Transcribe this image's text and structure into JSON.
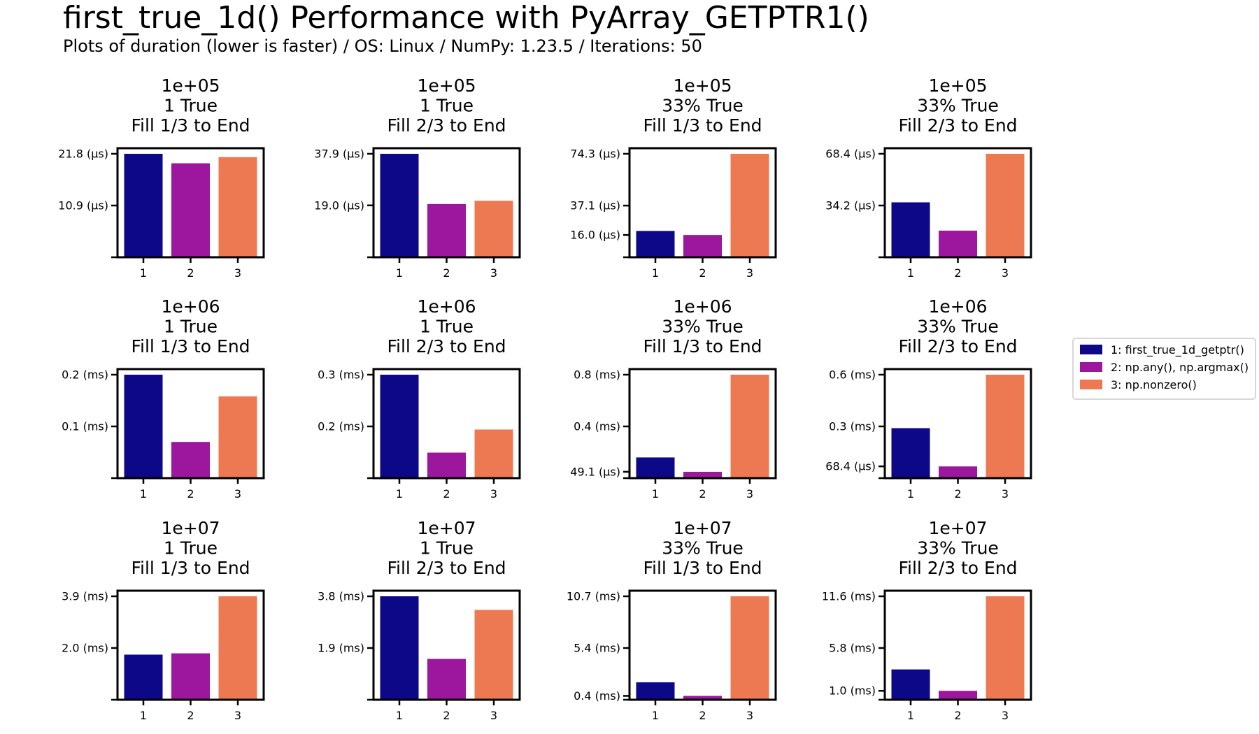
{
  "title": "first_true_1d() Performance with PyArray_GETPTR1()",
  "subtitle": "Plots of duration (lower is faster) / OS: Linux / NumPy: 1.23.5 / Iterations: 50",
  "colors": {
    "1": "#0d0887",
    "2": "#9c179e",
    "3": "#ed7953"
  },
  "legend": [
    {
      "key": "1",
      "label": "1: first_true_1d_getptr()"
    },
    {
      "key": "2",
      "label": "2: np.any(), np.argmax()"
    },
    {
      "key": "3",
      "label": "3: np.nonzero()"
    }
  ],
  "chart_data": [
    {
      "type": "bar",
      "title": [
        "1e+05",
        "1 True",
        "Fill 1/3 to End"
      ],
      "categories": [
        "1",
        "2",
        "3"
      ],
      "values": [
        21.8,
        19.8,
        21.1
      ],
      "unit": "µs",
      "ylim": [
        0,
        21.8
      ],
      "yticks": [
        {
          "value": 0,
          "label": ""
        },
        {
          "value": 10.9,
          "label": "10.9 (µs)"
        },
        {
          "value": 21.8,
          "label": "21.8 (µs)"
        }
      ]
    },
    {
      "type": "bar",
      "title": [
        "1e+05",
        "1 True",
        "Fill 2/3 to End"
      ],
      "categories": [
        "1",
        "2",
        "3"
      ],
      "values": [
        37.9,
        19.5,
        20.7
      ],
      "unit": "µs",
      "ylim": [
        0,
        37.9
      ],
      "yticks": [
        {
          "value": 0,
          "label": ""
        },
        {
          "value": 19.0,
          "label": "19.0 (µs)"
        },
        {
          "value": 37.9,
          "label": "37.9 (µs)"
        }
      ]
    },
    {
      "type": "bar",
      "title": [
        "1e+05",
        "33% True",
        "Fill 1/3 to End"
      ],
      "categories": [
        "1",
        "2",
        "3"
      ],
      "values": [
        18.9,
        16.0,
        74.3
      ],
      "unit": "µs",
      "ylim": [
        0,
        74.3
      ],
      "yticks": [
        {
          "value": 0,
          "label": ""
        },
        {
          "value": 16.0,
          "label": "16.0 (µs)"
        },
        {
          "value": 37.1,
          "label": "37.1 (µs)"
        },
        {
          "value": 74.3,
          "label": "74.3 (µs)"
        }
      ]
    },
    {
      "type": "bar",
      "title": [
        "1e+05",
        "33% True",
        "Fill 2/3 to End"
      ],
      "categories": [
        "1",
        "2",
        "3"
      ],
      "values": [
        36.3,
        17.6,
        68.4
      ],
      "unit": "µs",
      "ylim": [
        0,
        68.4
      ],
      "yticks": [
        {
          "value": 0,
          "label": ""
        },
        {
          "value": 34.2,
          "label": "34.2 (µs)"
        },
        {
          "value": 68.4,
          "label": "68.4 (µs)"
        }
      ]
    },
    {
      "type": "bar",
      "title": [
        "1e+06",
        "1 True",
        "Fill 1/3 to End"
      ],
      "categories": [
        "1",
        "2",
        "3"
      ],
      "values": [
        0.2,
        0.07,
        0.158
      ],
      "unit": "ms",
      "ylim": [
        0,
        0.2
      ],
      "yticks": [
        {
          "value": 0,
          "label": ""
        },
        {
          "value": 0.1,
          "label": "0.1 (ms)"
        },
        {
          "value": 0.2,
          "label": "0.2 (ms)"
        }
      ]
    },
    {
      "type": "bar",
      "title": [
        "1e+06",
        "1 True",
        "Fill 2/3 to End"
      ],
      "categories": [
        "1",
        "2",
        "3"
      ],
      "values": [
        0.3,
        0.074,
        0.141
      ],
      "unit": "ms",
      "ylim": [
        0,
        0.3
      ],
      "yticks": [
        {
          "value": 0,
          "label": ""
        },
        {
          "value": 0.15,
          "label": "0.2 (ms)"
        },
        {
          "value": 0.3,
          "label": "0.3 (ms)"
        }
      ]
    },
    {
      "type": "bar",
      "title": [
        "1e+06",
        "33% True",
        "Fill 1/3 to End"
      ],
      "categories": [
        "1",
        "2",
        "3"
      ],
      "values": [
        0.16,
        0.049,
        0.8
      ],
      "unit": "ms",
      "ylim": [
        0,
        0.8
      ],
      "yticks": [
        {
          "value": 0,
          "label": ""
        },
        {
          "value": 0.0491,
          "label": "49.1 (µs)"
        },
        {
          "value": 0.4,
          "label": "0.4 (ms)"
        },
        {
          "value": 0.8,
          "label": "0.8 (ms)"
        }
      ]
    },
    {
      "type": "bar",
      "title": [
        "1e+06",
        "33% True",
        "Fill 2/3 to End"
      ],
      "categories": [
        "1",
        "2",
        "3"
      ],
      "values": [
        0.29,
        0.068,
        0.6
      ],
      "unit": "ms",
      "ylim": [
        0,
        0.6
      ],
      "yticks": [
        {
          "value": 0,
          "label": ""
        },
        {
          "value": 0.0684,
          "label": "68.4 (µs)"
        },
        {
          "value": 0.3,
          "label": "0.3 (ms)"
        },
        {
          "value": 0.6,
          "label": "0.6 (ms)"
        }
      ]
    },
    {
      "type": "bar",
      "title": [
        "1e+07",
        "1 True",
        "Fill 1/3 to End"
      ],
      "categories": [
        "1",
        "2",
        "3"
      ],
      "values": [
        1.7,
        1.75,
        3.9
      ],
      "unit": "ms",
      "ylim": [
        0,
        3.9
      ],
      "yticks": [
        {
          "value": 0,
          "label": ""
        },
        {
          "value": 1.95,
          "label": "2.0 (ms)"
        },
        {
          "value": 3.9,
          "label": "3.9 (ms)"
        }
      ]
    },
    {
      "type": "bar",
      "title": [
        "1e+07",
        "1 True",
        "Fill 2/3 to End"
      ],
      "categories": [
        "1",
        "2",
        "3"
      ],
      "values": [
        3.8,
        1.5,
        3.3
      ],
      "unit": "ms",
      "ylim": [
        0,
        3.8
      ],
      "yticks": [
        {
          "value": 0,
          "label": ""
        },
        {
          "value": 1.9,
          "label": "1.9 (ms)"
        },
        {
          "value": 3.8,
          "label": "3.8 (ms)"
        }
      ]
    },
    {
      "type": "bar",
      "title": [
        "1e+07",
        "33% True",
        "Fill 1/3 to End"
      ],
      "categories": [
        "1",
        "2",
        "3"
      ],
      "values": [
        1.8,
        0.4,
        10.7
      ],
      "unit": "ms",
      "ylim": [
        0,
        10.7
      ],
      "yticks": [
        {
          "value": 0,
          "label": ""
        },
        {
          "value": 0.4,
          "label": "0.4 (ms)"
        },
        {
          "value": 5.35,
          "label": "5.4 (ms)"
        },
        {
          "value": 10.7,
          "label": "10.7 (ms)"
        }
      ]
    },
    {
      "type": "bar",
      "title": [
        "1e+07",
        "33% True",
        "Fill 2/3 to End"
      ],
      "categories": [
        "1",
        "2",
        "3"
      ],
      "values": [
        3.4,
        1.0,
        11.6
      ],
      "unit": "ms",
      "ylim": [
        0,
        11.6
      ],
      "yticks": [
        {
          "value": 0,
          "label": ""
        },
        {
          "value": 1.0,
          "label": "1.0 (ms)"
        },
        {
          "value": 5.8,
          "label": "5.8 (ms)"
        },
        {
          "value": 11.6,
          "label": "11.6 (ms)"
        }
      ]
    }
  ]
}
